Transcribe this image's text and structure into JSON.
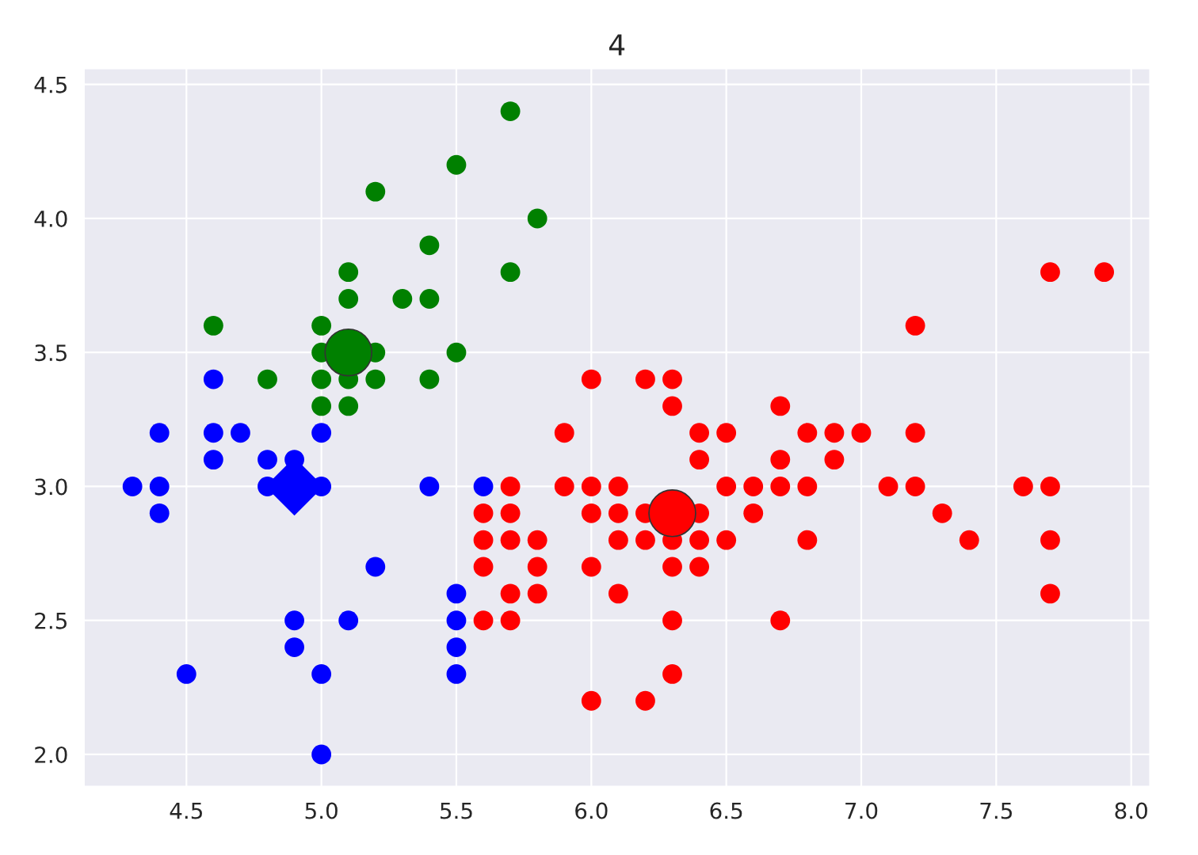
{
  "chart_data": {
    "type": "scatter",
    "title": "4",
    "grid": true,
    "legend": false,
    "marker": "circle",
    "xlim": [
      4.12,
      8.07
    ],
    "ylim": [
      1.88,
      4.56
    ],
    "xticks": [
      {
        "value": 4.5,
        "label": "4.5"
      },
      {
        "value": 5.0,
        "label": "5.0"
      },
      {
        "value": 5.5,
        "label": "5.5"
      },
      {
        "value": 6.0,
        "label": "6.0"
      },
      {
        "value": 6.5,
        "label": "6.5"
      },
      {
        "value": 7.0,
        "label": "7.0"
      },
      {
        "value": 7.5,
        "label": "7.5"
      },
      {
        "value": 8.0,
        "label": "8.0"
      }
    ],
    "yticks": [
      {
        "value": 2.0,
        "label": "2.0"
      },
      {
        "value": 2.5,
        "label": "2.5"
      },
      {
        "value": 3.0,
        "label": "3.0"
      },
      {
        "value": 3.5,
        "label": "3.5"
      },
      {
        "value": 4.0,
        "label": "4.0"
      },
      {
        "value": 4.5,
        "label": "4.5"
      }
    ],
    "series": [
      {
        "color": "#0000ff",
        "x": [
          4.4,
          4.6,
          4.7,
          5.0,
          4.6,
          4.8,
          4.9,
          4.3,
          4.4,
          4.8,
          5.0,
          5.4,
          5.6,
          4.4,
          5.2,
          4.9,
          5.1,
          5.5,
          4.9,
          5.5,
          4.5,
          5.0,
          5.5,
          5.5,
          5.0,
          4.6
        ],
        "values": [
          3.2,
          3.2,
          3.2,
          3.2,
          3.1,
          3.1,
          3.1,
          3.0,
          3.0,
          3.0,
          3.0,
          3.0,
          3.0,
          2.9,
          2.7,
          2.5,
          2.5,
          2.5,
          2.4,
          2.4,
          2.3,
          2.3,
          2.3,
          2.6,
          2.0,
          3.4
        ]
      },
      {
        "color": "#008000",
        "x": [
          4.8,
          5.0,
          5.1,
          5.2,
          5.4,
          5.0,
          5.2,
          5.5,
          4.6,
          5.0,
          5.1,
          5.3,
          5.4,
          5.1,
          5.7,
          5.4,
          5.8,
          5.2,
          5.5,
          5.7,
          5.0,
          5.1
        ],
        "values": [
          3.4,
          3.4,
          3.4,
          3.4,
          3.4,
          3.5,
          3.5,
          3.5,
          3.6,
          3.6,
          3.7,
          3.7,
          3.7,
          3.8,
          3.8,
          3.9,
          4.0,
          4.1,
          4.2,
          4.4,
          3.3,
          3.3
        ]
      },
      {
        "color": "#ff0000",
        "x": [
          6.0,
          6.2,
          6.3,
          6.3,
          5.9,
          6.4,
          6.5,
          6.4,
          5.7,
          5.9,
          6.0,
          6.1,
          6.5,
          6.6,
          5.6,
          5.7,
          6.0,
          6.1,
          6.2,
          6.4,
          6.6,
          5.6,
          5.7,
          5.8,
          6.1,
          6.2,
          6.3,
          6.4,
          6.5,
          5.6,
          5.8,
          6.0,
          6.3,
          6.4,
          5.7,
          5.8,
          6.1,
          5.6,
          5.7,
          6.3,
          6.3,
          6.0,
          6.2,
          7.7,
          7.9,
          7.2,
          6.7,
          6.8,
          6.9,
          7.0,
          7.2,
          6.7,
          6.9,
          6.7,
          6.8,
          7.1,
          7.2,
          7.6,
          7.7,
          7.3,
          6.8,
          7.4,
          7.7,
          7.7,
          6.7
        ],
        "values": [
          3.4,
          3.4,
          3.4,
          3.3,
          3.2,
          3.2,
          3.2,
          3.1,
          3.0,
          3.0,
          3.0,
          3.0,
          3.0,
          3.0,
          2.9,
          2.9,
          2.9,
          2.9,
          2.9,
          2.9,
          2.9,
          2.8,
          2.8,
          2.8,
          2.8,
          2.8,
          2.8,
          2.8,
          2.8,
          2.7,
          2.7,
          2.7,
          2.7,
          2.7,
          2.6,
          2.6,
          2.6,
          2.5,
          2.5,
          2.5,
          2.3,
          2.2,
          2.2,
          3.8,
          3.8,
          3.6,
          3.3,
          3.2,
          3.2,
          3.2,
          3.2,
          3.1,
          3.1,
          3.0,
          3.0,
          3.0,
          3.0,
          3.0,
          3.0,
          2.9,
          2.8,
          2.8,
          2.8,
          2.6,
          2.5
        ]
      },
      {
        "color": "#0000ff",
        "marker": "diamond",
        "x": [
          4.9
        ],
        "values": [
          3.0
        ]
      },
      {
        "color": "#008000",
        "marker": "circle",
        "x": [
          5.1
        ],
        "values": [
          3.5
        ]
      },
      {
        "color": "#ff0000",
        "marker": "circle",
        "x": [
          6.3
        ],
        "values": [
          2.9
        ]
      }
    ]
  }
}
